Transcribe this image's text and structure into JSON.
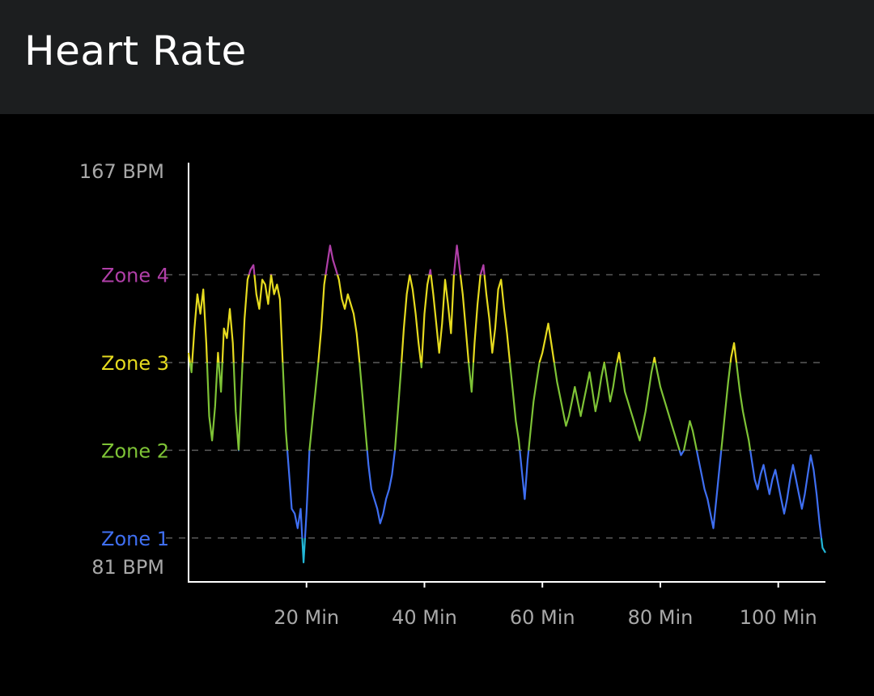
{
  "app": {
    "title": "Heart Rate"
  },
  "colors": {
    "background": "#000000",
    "app_bar": "#1c1e1f",
    "axis": "#ffffff",
    "label_gray": "#a8a8a8",
    "gridline": "#5a5a5a",
    "zone1": "#3f6ff2",
    "zone2": "#7ec336",
    "zone3": "#e6db1f",
    "zone4": "#b03fa8",
    "below_zone1": "#22b6d6"
  },
  "chart_data": {
    "type": "line",
    "title": "Heart Rate",
    "xlabel": "",
    "ylabel": "",
    "xlim": [
      0,
      108
    ],
    "ylim": [
      81,
      167
    ],
    "x_ticks": [
      {
        "value": 20,
        "label": "20 Min"
      },
      {
        "value": 40,
        "label": "40 Min"
      },
      {
        "value": 60,
        "label": "60 Min"
      },
      {
        "value": 80,
        "label": "80 Min"
      },
      {
        "value": 100,
        "label": "100 Min"
      }
    ],
    "y_labels": {
      "max": {
        "value": 167,
        "label": "167 BPM"
      },
      "min": {
        "value": 81,
        "label": "81 BPM"
      }
    },
    "zones": [
      {
        "name": "Zone 1",
        "value": 90,
        "color": "#3f6ff2"
      },
      {
        "name": "Zone 2",
        "value": 108,
        "color": "#7ec336"
      },
      {
        "name": "Zone 3",
        "value": 126,
        "color": "#e6db1f"
      },
      {
        "name": "Zone 4",
        "value": 144,
        "color": "#b03fa8"
      }
    ],
    "series": [
      {
        "points": [
          [
            0,
            128
          ],
          [
            0.5,
            124
          ],
          [
            1,
            133
          ],
          [
            1.5,
            140
          ],
          [
            2,
            136
          ],
          [
            2.5,
            141
          ],
          [
            3,
            130
          ],
          [
            3.5,
            115
          ],
          [
            4,
            110
          ],
          [
            4.5,
            117
          ],
          [
            5,
            128
          ],
          [
            5.5,
            120
          ],
          [
            6,
            133
          ],
          [
            6.5,
            131
          ],
          [
            7,
            137
          ],
          [
            7.5,
            130
          ],
          [
            8,
            116
          ],
          [
            8.5,
            108
          ],
          [
            9,
            122
          ],
          [
            9.5,
            135
          ],
          [
            10,
            143
          ],
          [
            10.5,
            145
          ],
          [
            11,
            146
          ],
          [
            11.5,
            140
          ],
          [
            12,
            137
          ],
          [
            12.5,
            143
          ],
          [
            13,
            142
          ],
          [
            13.5,
            138
          ],
          [
            14,
            144
          ],
          [
            14.5,
            140
          ],
          [
            15,
            142
          ],
          [
            15.5,
            139
          ],
          [
            16,
            125
          ],
          [
            16.5,
            112
          ],
          [
            17,
            104
          ],
          [
            17.5,
            96
          ],
          [
            18,
            95
          ],
          [
            18.5,
            92
          ],
          [
            19,
            96
          ],
          [
            19.5,
            85
          ],
          [
            20,
            95
          ],
          [
            20.5,
            108
          ],
          [
            21,
            114
          ],
          [
            21.5,
            120
          ],
          [
            22,
            126
          ],
          [
            22.5,
            133
          ],
          [
            23,
            142
          ],
          [
            23.5,
            146
          ],
          [
            24,
            150
          ],
          [
            24.5,
            147
          ],
          [
            25,
            145
          ],
          [
            25.5,
            143
          ],
          [
            26,
            139
          ],
          [
            26.5,
            137
          ],
          [
            27,
            140
          ],
          [
            27.5,
            138
          ],
          [
            28,
            136
          ],
          [
            28.5,
            132
          ],
          [
            29,
            126
          ],
          [
            29.5,
            119
          ],
          [
            30,
            112
          ],
          [
            30.5,
            105
          ],
          [
            31,
            100
          ],
          [
            31.5,
            98
          ],
          [
            32,
            96
          ],
          [
            32.5,
            93
          ],
          [
            33,
            95
          ],
          [
            33.5,
            98
          ],
          [
            34,
            100
          ],
          [
            34.5,
            103
          ],
          [
            35,
            108
          ],
          [
            35.5,
            116
          ],
          [
            36,
            124
          ],
          [
            36.5,
            133
          ],
          [
            37,
            140
          ],
          [
            37.5,
            144
          ],
          [
            38,
            141
          ],
          [
            38.5,
            136
          ],
          [
            39,
            130
          ],
          [
            39.5,
            125
          ],
          [
            40,
            136
          ],
          [
            40.5,
            142
          ],
          [
            41,
            145
          ],
          [
            41.5,
            140
          ],
          [
            42,
            134
          ],
          [
            42.5,
            128
          ],
          [
            43,
            134
          ],
          [
            43.5,
            143
          ],
          [
            44,
            138
          ],
          [
            44.5,
            132
          ],
          [
            45,
            144
          ],
          [
            45.5,
            150
          ],
          [
            46,
            145
          ],
          [
            46.5,
            140
          ],
          [
            47,
            133
          ],
          [
            47.5,
            126
          ],
          [
            48,
            120
          ],
          [
            48.5,
            130
          ],
          [
            49,
            138
          ],
          [
            49.5,
            144
          ],
          [
            50,
            146
          ],
          [
            50.5,
            140
          ],
          [
            51,
            135
          ],
          [
            51.5,
            128
          ],
          [
            52,
            133
          ],
          [
            52.5,
            141
          ],
          [
            53,
            143
          ],
          [
            53.5,
            137
          ],
          [
            54,
            132
          ],
          [
            54.5,
            126
          ],
          [
            55,
            120
          ],
          [
            55.5,
            114
          ],
          [
            56,
            110
          ],
          [
            56.5,
            104
          ],
          [
            57,
            98
          ],
          [
            57.5,
            106
          ],
          [
            58,
            112
          ],
          [
            58.5,
            118
          ],
          [
            59,
            122
          ],
          [
            59.5,
            126
          ],
          [
            60,
            128
          ],
          [
            60.5,
            131
          ],
          [
            61,
            134
          ],
          [
            61.5,
            130
          ],
          [
            62,
            126
          ],
          [
            62.5,
            122
          ],
          [
            63,
            119
          ],
          [
            63.5,
            116
          ],
          [
            64,
            113
          ],
          [
            64.5,
            115
          ],
          [
            65,
            118
          ],
          [
            65.5,
            121
          ],
          [
            66,
            118
          ],
          [
            66.5,
            115
          ],
          [
            67,
            118
          ],
          [
            67.5,
            121
          ],
          [
            68,
            124
          ],
          [
            68.5,
            120
          ],
          [
            69,
            116
          ],
          [
            69.5,
            119
          ],
          [
            70,
            123
          ],
          [
            70.5,
            126
          ],
          [
            71,
            122
          ],
          [
            71.5,
            118
          ],
          [
            72,
            121
          ],
          [
            72.5,
            125
          ],
          [
            73,
            128
          ],
          [
            73.5,
            124
          ],
          [
            74,
            120
          ],
          [
            74.5,
            118
          ],
          [
            75,
            116
          ],
          [
            75.5,
            114
          ],
          [
            76,
            112
          ],
          [
            76.5,
            110
          ],
          [
            77,
            113
          ],
          [
            77.5,
            116
          ],
          [
            78,
            120
          ],
          [
            78.5,
            124
          ],
          [
            79,
            127
          ],
          [
            79.5,
            124
          ],
          [
            80,
            121
          ],
          [
            80.5,
            119
          ],
          [
            81,
            117
          ],
          [
            81.5,
            115
          ],
          [
            82,
            113
          ],
          [
            82.5,
            111
          ],
          [
            83,
            109
          ],
          [
            83.5,
            107
          ],
          [
            84,
            108
          ],
          [
            84.5,
            111
          ],
          [
            85,
            114
          ],
          [
            85.5,
            112
          ],
          [
            86,
            109
          ],
          [
            86.5,
            106
          ],
          [
            87,
            103
          ],
          [
            87.5,
            100
          ],
          [
            88,
            98
          ],
          [
            88.5,
            95
          ],
          [
            89,
            92
          ],
          [
            89.5,
            98
          ],
          [
            90,
            104
          ],
          [
            90.5,
            110
          ],
          [
            91,
            116
          ],
          [
            91.5,
            122
          ],
          [
            92,
            127
          ],
          [
            92.5,
            130
          ],
          [
            93,
            125
          ],
          [
            93.5,
            120
          ],
          [
            94,
            116
          ],
          [
            94.5,
            113
          ],
          [
            95,
            110
          ],
          [
            95.5,
            106
          ],
          [
            96,
            102
          ],
          [
            96.5,
            100
          ],
          [
            97,
            103
          ],
          [
            97.5,
            105
          ],
          [
            98,
            102
          ],
          [
            98.5,
            99
          ],
          [
            99,
            102
          ],
          [
            99.5,
            104
          ],
          [
            100,
            101
          ],
          [
            100.5,
            98
          ],
          [
            101,
            95
          ],
          [
            101.5,
            98
          ],
          [
            102,
            102
          ],
          [
            102.5,
            105
          ],
          [
            103,
            102
          ],
          [
            103.5,
            99
          ],
          [
            104,
            96
          ],
          [
            104.5,
            99
          ],
          [
            105,
            103
          ],
          [
            105.5,
            107
          ],
          [
            106,
            104
          ],
          [
            106.5,
            99
          ],
          [
            107,
            93
          ],
          [
            107.5,
            88
          ],
          [
            108,
            87
          ]
        ]
      }
    ]
  }
}
